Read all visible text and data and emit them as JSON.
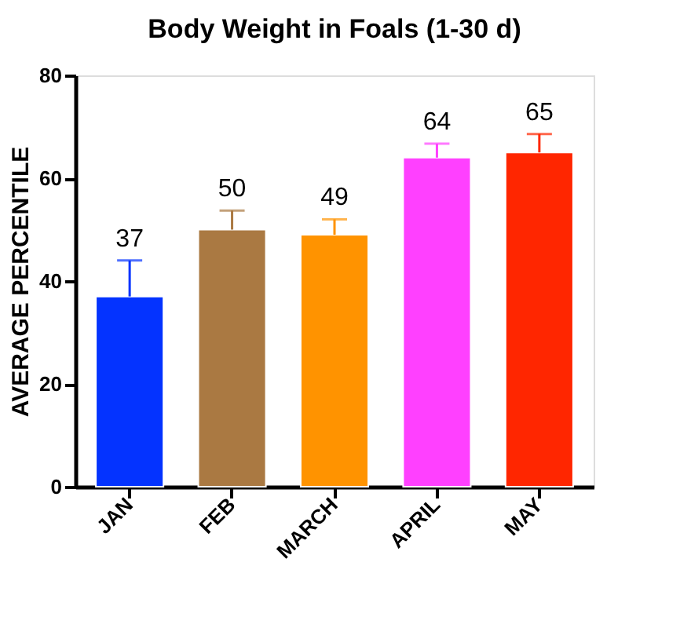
{
  "chart_data": {
    "type": "bar",
    "title": "Body Weight in Foals (1-30 d)",
    "ylabel": "AVERAGE PERCENTILE",
    "categories": [
      "JAN",
      "FEB",
      "MARCH",
      "APRIL",
      "MAY"
    ],
    "values": [
      37,
      50,
      49,
      64,
      65
    ],
    "colors": [
      "#0433ff",
      "#aa7942",
      "#ff9300",
      "#ff40ff",
      "#ff2600"
    ],
    "errors": [
      7,
      3.7,
      3,
      2.7,
      3.6
    ],
    "data_labels": true,
    "ylim": [
      0,
      80
    ],
    "yticks": [
      0,
      20,
      40,
      60,
      80
    ],
    "grid": false
  }
}
